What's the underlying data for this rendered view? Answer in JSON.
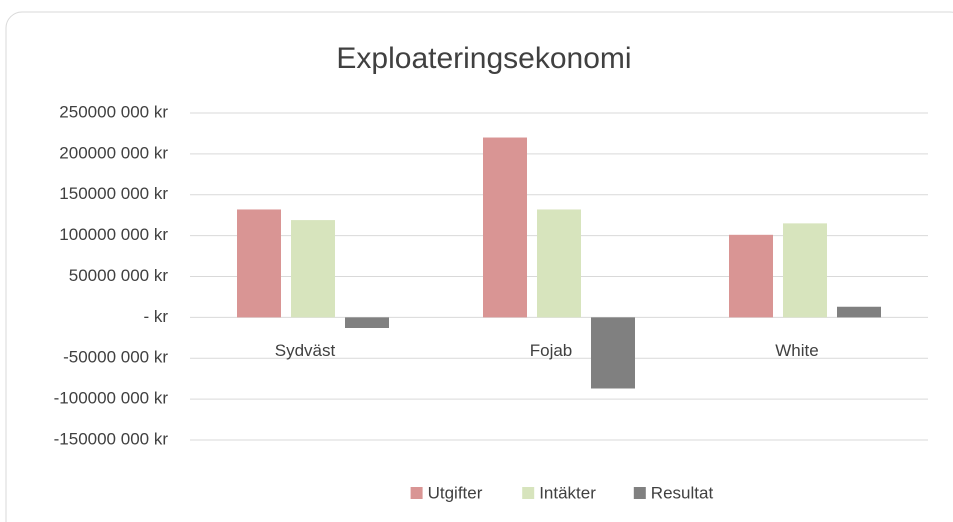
{
  "chart_data": {
    "type": "bar",
    "title": "Exploateringsekonomi",
    "categories": [
      "Sydväst",
      "Fojab",
      "White"
    ],
    "series": [
      {
        "name": "Utgifter",
        "color": "#d99594",
        "values": [
          132000000,
          220000000,
          101000000
        ]
      },
      {
        "name": "Intäkter",
        "color": "#d7e4bd",
        "values": [
          119000000,
          132000000,
          115000000
        ]
      },
      {
        "name": "Resultat",
        "color": "#808080",
        "values": [
          -13000000,
          -87000000,
          13000000
        ]
      }
    ],
    "ylim": [
      -150000000,
      250000000
    ],
    "yticks": [
      {
        "value": -150000000,
        "label": "-150000 000 kr"
      },
      {
        "value": -100000000,
        "label": "-100000 000 kr"
      },
      {
        "value": -50000000,
        "label": "-50000 000 kr"
      },
      {
        "value": 0,
        "label": "- kr"
      },
      {
        "value": 50000000,
        "label": "50000 000 kr"
      },
      {
        "value": 100000000,
        "label": "100000 000 kr"
      },
      {
        "value": 150000000,
        "label": "150000 000 kr"
      },
      {
        "value": 200000000,
        "label": "200000 000 kr"
      },
      {
        "value": 250000000,
        "label": "250000 000 kr"
      }
    ],
    "grid": true,
    "legend": "bottom"
  }
}
